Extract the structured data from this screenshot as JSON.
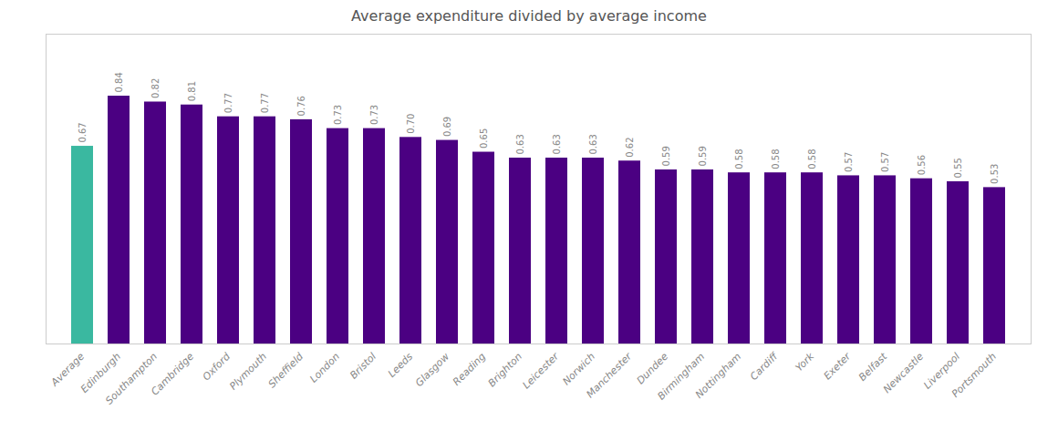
{
  "chart_data": {
    "type": "bar",
    "title": "Average expenditure divided by average income",
    "categories": [
      "Average",
      "Edinburgh",
      "Southampton",
      "Cambridge",
      "Oxford",
      "Plymouth",
      "Sheffield",
      "London",
      "Bristol",
      "Leeds",
      "Glasgow",
      "Reading",
      "Brighton",
      "Leicester",
      "Norwich",
      "Manchester",
      "Dundee",
      "Birmingham",
      "Nottingham",
      "Cardiff",
      "York",
      "Exeter",
      "Belfast",
      "Newcastle",
      "Liverpool",
      "Portsmouth"
    ],
    "values": [
      0.67,
      0.84,
      0.82,
      0.81,
      0.77,
      0.77,
      0.76,
      0.73,
      0.73,
      0.7,
      0.69,
      0.65,
      0.63,
      0.63,
      0.63,
      0.62,
      0.59,
      0.59,
      0.58,
      0.58,
      0.58,
      0.57,
      0.57,
      0.56,
      0.55,
      0.53
    ],
    "value_labels": [
      "0.67",
      "0.84",
      "0.82",
      "0.81",
      "0.77",
      "0.77",
      "0.76",
      "0.73",
      "0.73",
      "0.70",
      "0.69",
      "0.65",
      "0.63",
      "0.63",
      "0.63",
      "0.62",
      "0.59",
      "0.59",
      "0.58",
      "0.58",
      "0.58",
      "0.57",
      "0.57",
      "0.56",
      "0.55",
      "0.53"
    ],
    "colors": [
      "#3ab8a0",
      "#4b0082",
      "#4b0082",
      "#4b0082",
      "#4b0082",
      "#4b0082",
      "#4b0082",
      "#4b0082",
      "#4b0082",
      "#4b0082",
      "#4b0082",
      "#4b0082",
      "#4b0082",
      "#4b0082",
      "#4b0082",
      "#4b0082",
      "#4b0082",
      "#4b0082",
      "#4b0082",
      "#4b0082",
      "#4b0082",
      "#4b0082",
      "#4b0082",
      "#4b0082",
      "#4b0082",
      "#4b0082"
    ],
    "ylim": [
      0,
      1.05
    ],
    "tick_labels": "x",
    "data_labels": true,
    "grid": false
  }
}
